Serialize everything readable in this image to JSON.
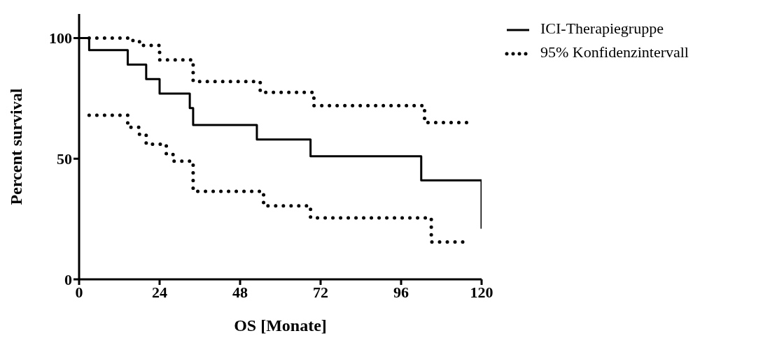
{
  "chart_data": {
    "type": "step",
    "xlabel": "OS [Monate]",
    "ylabel": "Percent survival",
    "xlim": [
      0,
      120
    ],
    "xticks": [
      0,
      24,
      48,
      72,
      96,
      120
    ],
    "ylim": [
      0,
      110
    ],
    "yticks": [
      0,
      50,
      100
    ],
    "grid": false,
    "legend": "top right",
    "series": [
      {
        "name": "ICI-Therapiegruppe",
        "color": "#000000",
        "line_style": "solid",
        "x": [
          0,
          3,
          14.5,
          20,
          24,
          33,
          34,
          53,
          69,
          102,
          120
        ],
        "values": [
          100,
          95,
          89,
          83,
          77,
          71,
          64,
          58,
          51,
          41,
          21
        ]
      },
      {
        "name": "95% Konfidenzintervall",
        "color": "#000000",
        "line_style": "dotted",
        "x": [
          3,
          15,
          18,
          24,
          34,
          54,
          70,
          103,
          116
        ],
        "values": [
          100,
          99,
          97,
          91,
          82,
          77.5,
          72,
          65,
          65
        ]
      },
      {
        "color": "#000000",
        "line_style": "dotted",
        "x": [
          3,
          14.5,
          18,
          20,
          26,
          28,
          34,
          55,
          69,
          105,
          116
        ],
        "values": [
          68,
          63,
          60,
          56,
          52,
          49,
          36.5,
          30.5,
          25.5,
          15.5,
          15.5
        ]
      }
    ]
  }
}
